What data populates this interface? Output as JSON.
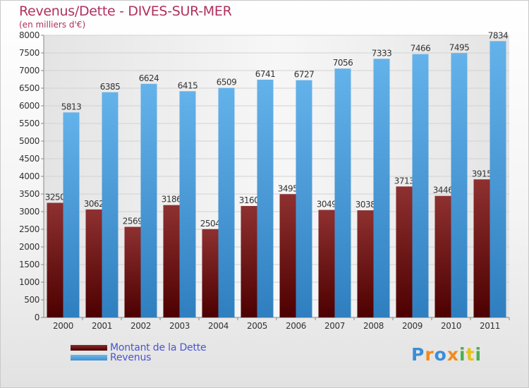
{
  "chart_data": {
    "type": "bar",
    "title": "Revenus/Dette - DIVES-SUR-MER",
    "subtitle": "(en milliers d'€)",
    "categories": [
      "2000",
      "2001",
      "2002",
      "2003",
      "2004",
      "2005",
      "2006",
      "2007",
      "2008",
      "2009",
      "2010",
      "2011"
    ],
    "series": [
      {
        "name": "Montant de la Dette",
        "color": "#7a1c1c",
        "values": [
          3250,
          3062,
          2569,
          3186,
          2504,
          3160,
          3495,
          3049,
          3038,
          3713,
          3446,
          3915
        ]
      },
      {
        "name": "Revenus",
        "color": "#4aa3e6",
        "values": [
          5813,
          6385,
          6624,
          6415,
          6509,
          6741,
          6727,
          7056,
          7333,
          7466,
          7495,
          7834
        ]
      }
    ],
    "ylim": [
      0,
      8000
    ],
    "ytick_step": 500,
    "legend_position": "bottom-left"
  },
  "brand": {
    "letters": [
      "P",
      "r",
      "o",
      "x",
      "i",
      "t",
      "i"
    ],
    "colors": [
      "#3a8fd6",
      "#f28a1e",
      "#3a8fd6",
      "#f28a1e",
      "#4caf50",
      "#e8c21a",
      "#4caf50"
    ]
  }
}
